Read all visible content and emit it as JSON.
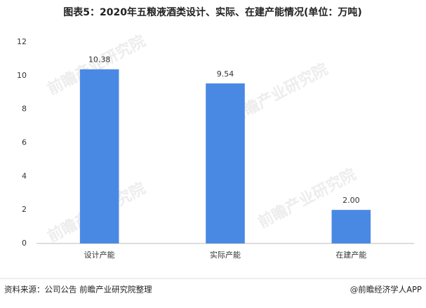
{
  "chart_data": {
    "type": "bar",
    "title": "图表5：2020年五粮液酒类设计、实际、在建产能情况(单位：万吨)",
    "categories": [
      "设计产能",
      "实际产能",
      "在建产能"
    ],
    "values": [
      10.38,
      9.54,
      2
    ],
    "value_labels": [
      "10.38",
      "9.54",
      "2.00"
    ],
    "color": "#4a89e3",
    "ylim": [
      0,
      12
    ],
    "yticks": [
      0,
      2,
      4,
      6,
      8,
      10,
      12
    ],
    "grid": false,
    "source": "资料来源：公司公告 前瞻产业研究院整理",
    "credit": "@前瞻经济学人APP",
    "watermark": "前瞻产业研究院"
  }
}
